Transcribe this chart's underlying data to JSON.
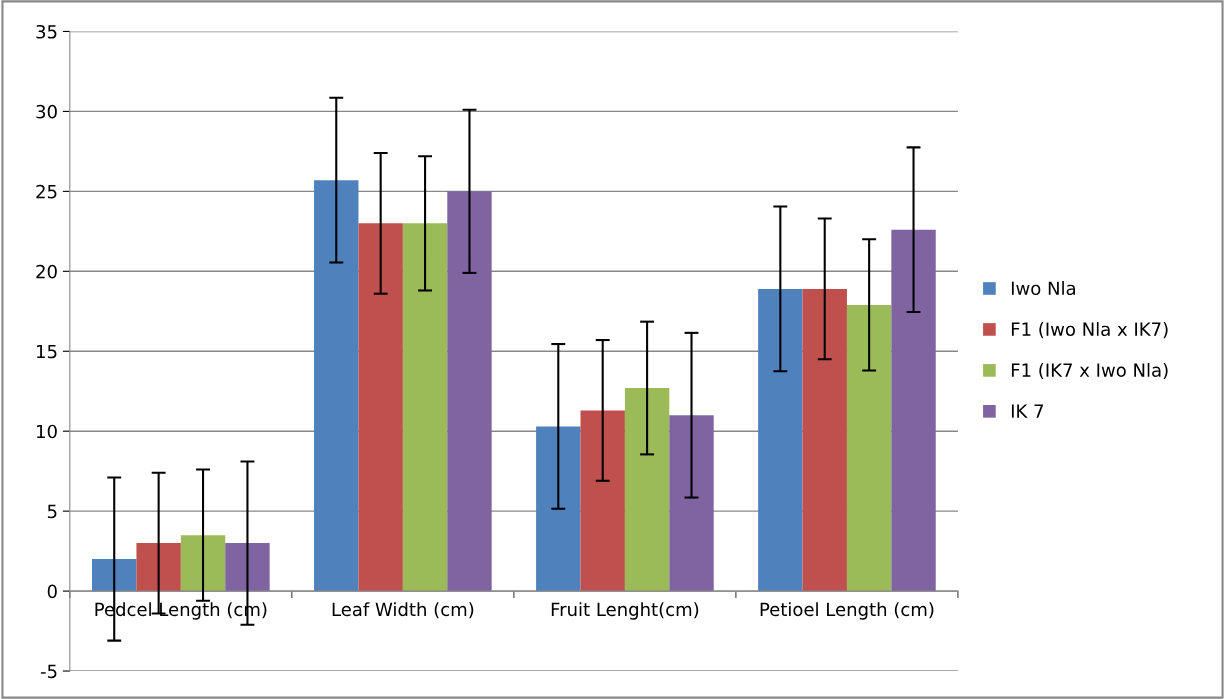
{
  "chart_data": {
    "type": "bar",
    "categories": [
      "Pedcel Length (cm)",
      "Leaf Width (cm)",
      "Fruit Lenght(cm)",
      "Petioel Length (cm)"
    ],
    "series": [
      {
        "name": "Iwo Nla",
        "color": "#4f81bd",
        "values": [
          2.0,
          25.7,
          10.3,
          18.9
        ],
        "errors": [
          5.1,
          5.15,
          5.15,
          5.15
        ]
      },
      {
        "name": "F1 (Iwo Nla x IK7)",
        "color": "#c0504d",
        "values": [
          3.0,
          23.0,
          11.3,
          18.9
        ],
        "errors": [
          4.4,
          4.4,
          4.4,
          4.4
        ]
      },
      {
        "name": "F1 (IK7 x Iwo Nla)",
        "color": "#9bbb59",
        "values": [
          3.5,
          23.0,
          12.7,
          17.9
        ],
        "errors": [
          4.1,
          4.2,
          4.15,
          4.1
        ]
      },
      {
        "name": "IK 7",
        "color": "#8064a2",
        "values": [
          3.0,
          25.0,
          11.0,
          22.6
        ],
        "errors": [
          5.1,
          5.1,
          5.15,
          5.15
        ]
      }
    ],
    "ylim": [
      -5,
      35
    ],
    "yticks": [
      -5,
      0,
      5,
      10,
      15,
      20,
      25,
      30,
      35
    ],
    "grid": "y",
    "legend": "right"
  }
}
